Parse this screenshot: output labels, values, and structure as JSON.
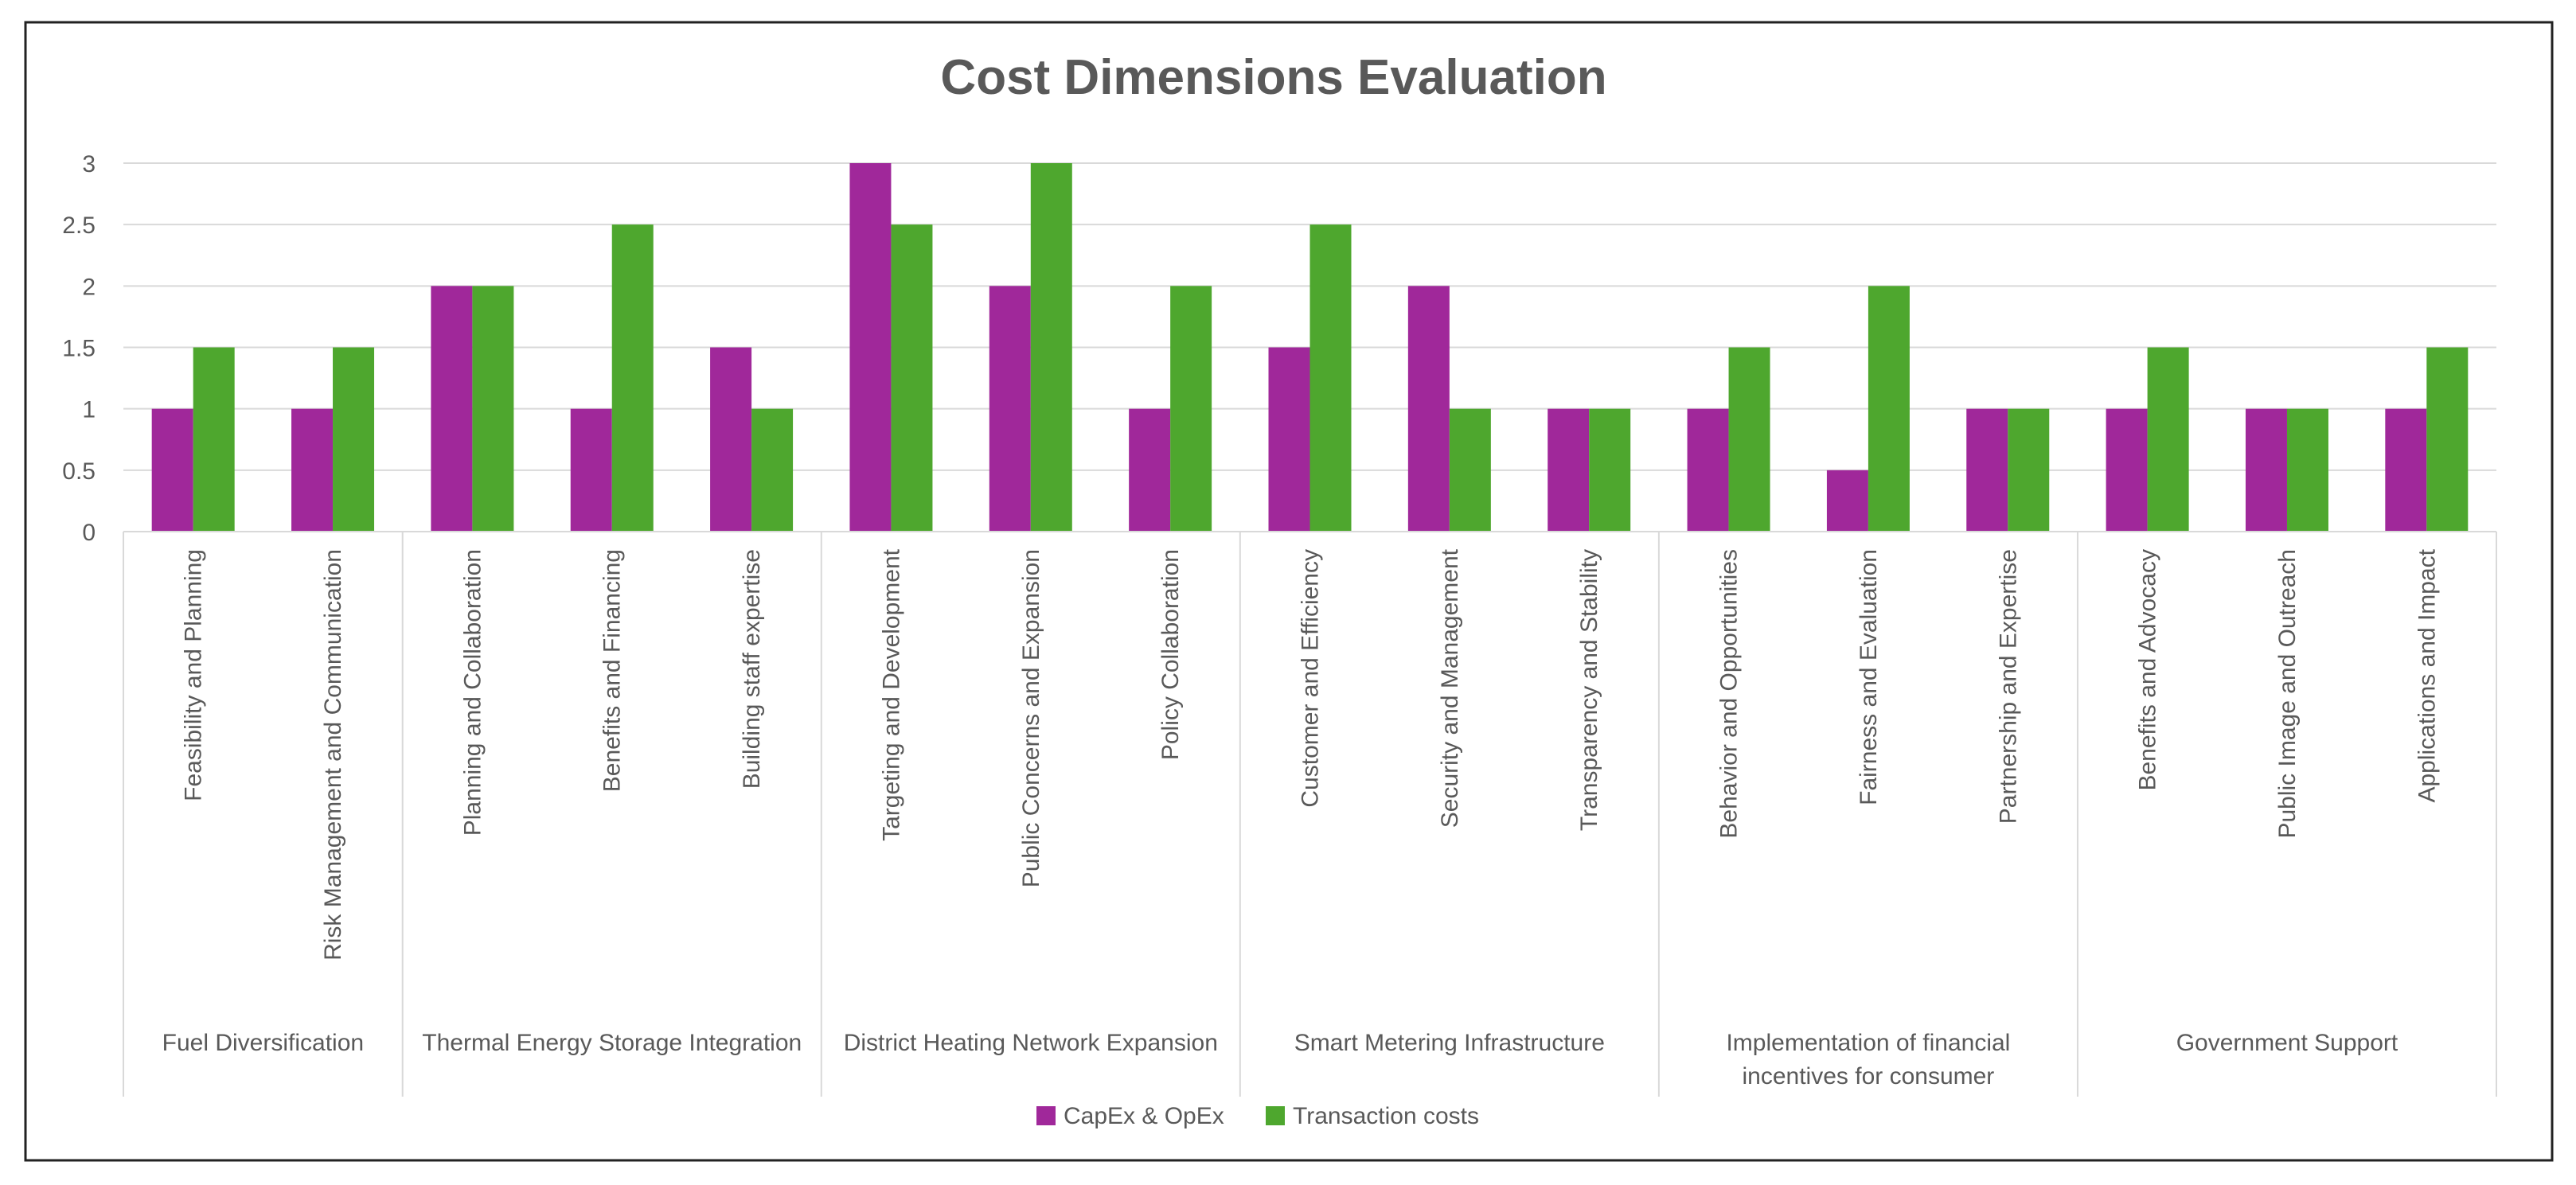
{
  "chart_data": {
    "type": "bar",
    "title": "Cost Dimensions Evaluation",
    "xlabel": "",
    "ylabel": "",
    "ylim": [
      0,
      3
    ],
    "yticks": [
      "0",
      "0.5",
      "1",
      "1.5",
      "2",
      "2.5",
      "3"
    ],
    "grid": true,
    "legend_position": "bottom",
    "groups": [
      {
        "label_lines": [
          "Fuel Diversification"
        ],
        "count": 2
      },
      {
        "label_lines": [
          "Thermal Energy Storage Integration"
        ],
        "count": 3
      },
      {
        "label_lines": [
          "District Heating Network Expansion"
        ],
        "count": 3
      },
      {
        "label_lines": [
          "Smart Metering Infrastructure"
        ],
        "count": 3
      },
      {
        "label_lines": [
          "Implementation of financial",
          "incentives for consumer"
        ],
        "count": 3
      },
      {
        "label_lines": [
          "Government Support"
        ],
        "count": 3
      }
    ],
    "categories": [
      "Feasibility and Planning",
      "Risk Management and Communication",
      "Planning and Collaboration",
      "Benefits and Financing",
      "Building staff expertise",
      "Targeting and Development",
      "Public Concerns and Expansion",
      "Policy Collaboration",
      "Customer and Efficiency",
      "Security and Management",
      "Transparency and Stability",
      "Behavior and Opportunities",
      "Fairness and Evaluation",
      "Partnership and Expertise",
      "Benefits and Advocacy",
      "Public Image and Outreach",
      "Applications and Impact"
    ],
    "series": [
      {
        "name": "CapEx & OpEx",
        "color": "#A0289A",
        "values": [
          1,
          1,
          2,
          1,
          1.5,
          3,
          2,
          1,
          1.5,
          2,
          1,
          1,
          0.5,
          1,
          1,
          1,
          1
        ]
      },
      {
        "name": "Transaction costs",
        "color": "#4EA72E",
        "values": [
          1.5,
          1.5,
          2,
          2.5,
          1,
          2.5,
          3,
          2,
          2.5,
          1,
          1,
          1.5,
          2,
          1,
          1.5,
          1,
          1.5
        ]
      }
    ]
  }
}
